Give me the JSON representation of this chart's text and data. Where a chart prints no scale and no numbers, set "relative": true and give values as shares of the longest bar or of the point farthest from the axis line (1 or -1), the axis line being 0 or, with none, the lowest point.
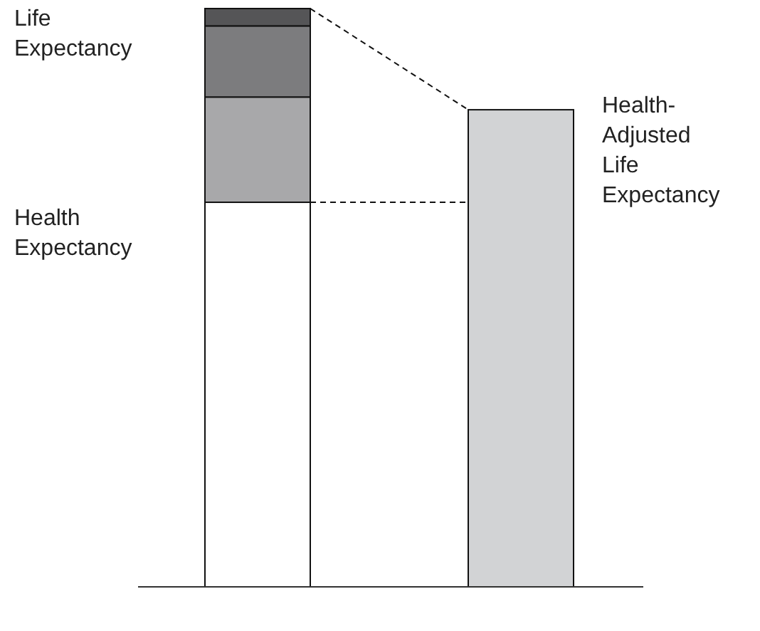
{
  "chart_data": {
    "type": "bar",
    "relative": true,
    "stacked": true,
    "categories": [
      null,
      null
    ],
    "series": [
      {
        "color": "#ffffff",
        "values": [
          0.665,
          null
        ]
      },
      {
        "color": "#a8a8aa",
        "values": [
          0.182,
          null
        ]
      },
      {
        "color": "#7c7c7e",
        "values": [
          0.123,
          null
        ]
      },
      {
        "color": "#555557",
        "values": [
          0.03,
          null
        ]
      },
      {
        "color": "#d2d3d5",
        "values": [
          null,
          0.825
        ]
      }
    ],
    "annotations": [
      "Life Expectancy",
      "Health Expectancy",
      "Health-Adjusted Life Expectancy"
    ]
  }
}
